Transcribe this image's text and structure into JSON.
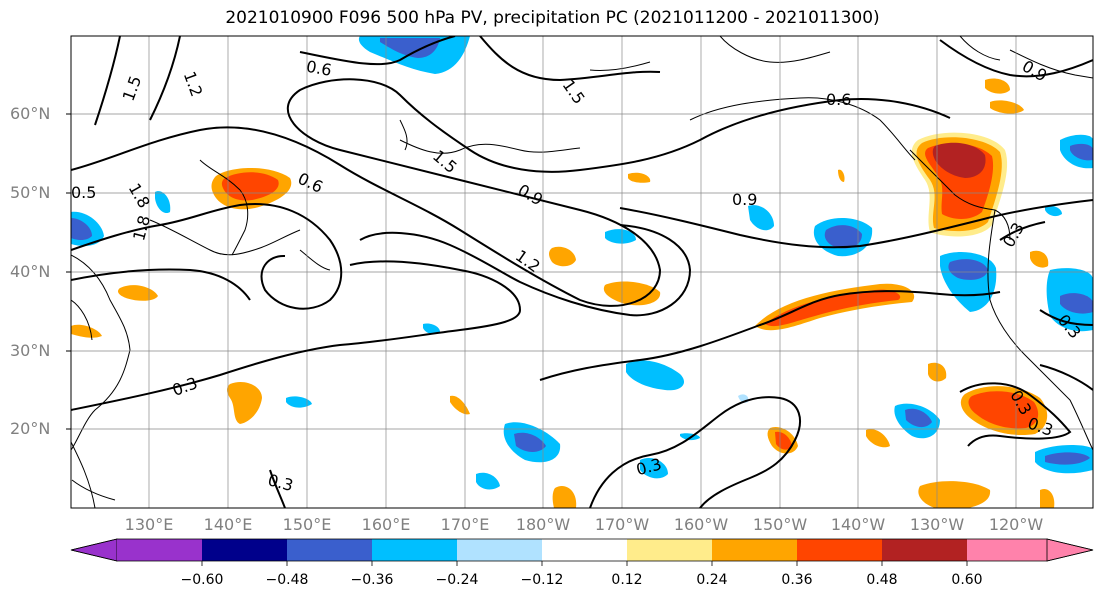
{
  "title": "2021010900 F096 500 hPa PV, precipitation PC (2021011200 - 2021011300)",
  "lat_labels": [
    "60°N",
    "50°N",
    "40°N",
    "30°N",
    "20°N"
  ],
  "lon_labels": [
    "130°E",
    "140°E",
    "150°E",
    "160°E",
    "170°E",
    "180°W",
    "170°W",
    "160°W",
    "150°W",
    "140°W",
    "130°W",
    "120°W"
  ],
  "contour_labels": [
    "1.5",
    "1.2",
    "0.6",
    "1.5",
    "0.6",
    "0.6",
    "1.5",
    "0.9",
    "0.9",
    "1.2",
    "1.8",
    "1.8",
    "0.3",
    "0.3",
    "0.3",
    "0.3",
    "0.3",
    "0.3",
    "0.3",
    "0.9",
    "0.5"
  ],
  "colorbar": {
    "tick_labels": [
      "−0.60",
      "−0.48",
      "−0.36",
      "−0.24",
      "−0.12",
      "0.12",
      "0.24",
      "0.36",
      "0.48",
      "0.60"
    ],
    "colors": [
      "#9932cc",
      "#00008b",
      "#3a5fcd",
      "#00bfff",
      "#b0e2ff",
      "#ffffff",
      "#ffec8b",
      "#ffa500",
      "#ff4500",
      "#b22222",
      "#ff82ab"
    ]
  }
}
